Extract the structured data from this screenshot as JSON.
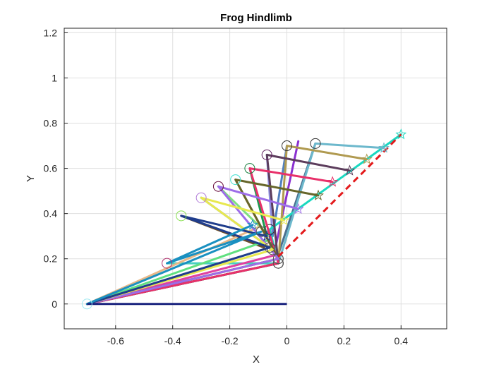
{
  "chart_data": {
    "type": "line",
    "title": "Frog Hindlimb",
    "xlabel": "X",
    "ylabel": "Y",
    "xlim": [
      -0.78,
      0.56
    ],
    "ylim": [
      -0.11,
      1.22
    ],
    "xticks": [
      -0.6,
      -0.4,
      -0.2,
      0,
      0.2,
      0.4
    ],
    "xticklabels": [
      "-0.6",
      "-0.4",
      "-0.2",
      "0",
      "0.2",
      "0.4"
    ],
    "yticks": [
      0,
      0.2,
      0.4,
      0.6,
      0.8,
      1,
      1.2
    ],
    "yticklabels": [
      "0",
      "0.2",
      "0.4",
      "0.6",
      "0.8",
      "1",
      "1.2"
    ],
    "grid": true,
    "base_link": {
      "x": [
        -0.7,
        0.0
      ],
      "y": [
        0.0,
        0.0
      ],
      "color": "#1a237e"
    },
    "base_marker": {
      "x": -0.7,
      "y": 0.0,
      "color": "#9ee8f0"
    },
    "target_path": {
      "x": [
        -0.03,
        0.4
      ],
      "y": [
        0.21,
        0.75
      ],
      "color": "#e31a1c",
      "style": "dashed"
    },
    "series": [
      {
        "x": [
          -0.7,
          -0.03,
          -0.06,
          0.4
        ],
        "y": [
          0.0,
          0.18,
          0.33,
          0.75
        ],
        "color": "#1ad8c0",
        "knee_color": "#555555",
        "hip_color": "#333333"
      },
      {
        "x": [
          -0.7,
          -0.03,
          0.1,
          0.34
        ],
        "y": [
          0.0,
          0.18,
          0.71,
          0.69
        ],
        "color": "#6cb8cc",
        "knee_color": "#555555",
        "hip_color": "#333333"
      },
      {
        "x": [
          -0.7,
          -0.03,
          0.0,
          0.28
        ],
        "y": [
          0.0,
          0.18,
          0.7,
          0.64
        ],
        "color": "#b09a50",
        "knee_color": "#555555",
        "hip_color": "#333333"
      },
      {
        "x": [
          -0.7,
          -0.03,
          -0.07,
          0.22
        ],
        "y": [
          0.0,
          0.18,
          0.66,
          0.59
        ],
        "color": "#5c3d5c",
        "knee_color": "#555555",
        "hip_color": "#5c1a5c"
      },
      {
        "x": [
          -0.7,
          -0.03,
          -0.13,
          0.16
        ],
        "y": [
          0.0,
          0.18,
          0.6,
          0.54
        ],
        "color": "#e8306a",
        "knee_color": "#555555",
        "hip_color": "#1a8040"
      },
      {
        "x": [
          -0.7,
          -0.03,
          -0.18,
          0.11
        ],
        "y": [
          0.0,
          0.2,
          0.55,
          0.48
        ],
        "color": "#66662a",
        "knee_color": "#555555",
        "hip_color": "#40e0d0"
      },
      {
        "x": [
          -0.7,
          -0.03,
          -0.24,
          0.04
        ],
        "y": [
          0.0,
          0.2,
          0.52,
          0.42
        ],
        "color": "#9d6de8",
        "knee_color": "#555555",
        "hip_color": "#6a1040"
      },
      {
        "x": [
          -0.7,
          -0.05,
          -0.3,
          -0.01
        ],
        "y": [
          0.0,
          0.24,
          0.47,
          0.37
        ],
        "color": "#e8e850",
        "knee_color": "#555555",
        "hip_color": "#b07bd8"
      },
      {
        "x": [
          -0.7,
          -0.06,
          -0.37,
          -0.07
        ],
        "y": [
          0.0,
          0.25,
          0.39,
          0.3
        ],
        "color": "#1f3d8c",
        "knee_color": "#555555",
        "hip_color": "#88e050"
      },
      {
        "x": [
          -0.7,
          -0.09,
          -0.42,
          -0.12
        ],
        "y": [
          0.0,
          0.32,
          0.18,
          0.35
        ],
        "color": "#1a90c0",
        "knee_color": "#555555",
        "hip_color": "#b0306e"
      }
    ],
    "extra_segments": [
      {
        "x": [
          -0.42,
          -0.03
        ],
        "y": [
          0.18,
          0.18
        ],
        "color": "#48d0c0"
      },
      {
        "x": [
          -0.37,
          -0.08
        ],
        "y": [
          0.39,
          0.25
        ],
        "color": "#6b4f2a"
      },
      {
        "x": [
          -0.3,
          -0.05
        ],
        "y": [
          0.47,
          0.24
        ],
        "color": "#3d6fd0"
      },
      {
        "x": [
          -0.24,
          -0.06
        ],
        "y": [
          0.52,
          0.3
        ],
        "color": "#80e080"
      },
      {
        "x": [
          -0.18,
          -0.04
        ],
        "y": [
          0.55,
          0.22
        ],
        "color": "#f0a070"
      },
      {
        "x": [
          -0.13,
          -0.07
        ],
        "y": [
          0.6,
          0.3
        ],
        "color": "#1a9c50"
      },
      {
        "x": [
          -0.07,
          -0.05
        ],
        "y": [
          0.66,
          0.3
        ],
        "color": "#9090e0"
      },
      {
        "x": [
          0.0,
          -0.05
        ],
        "y": [
          0.7,
          0.3
        ],
        "color": "#5080c0"
      },
      {
        "x": [
          0.04,
          -0.04
        ],
        "y": [
          0.72,
          0.25
        ],
        "color": "#8a30d0"
      },
      {
        "x": [
          0.1,
          -0.03
        ],
        "y": [
          0.71,
          0.22
        ],
        "color": "#4a7090"
      },
      {
        "x": [
          -0.7,
          -0.03
        ],
        "y": [
          0.0,
          0.22
        ],
        "color": "#e040a0"
      },
      {
        "x": [
          -0.7,
          -0.03
        ],
        "y": [
          0.0,
          0.2
        ],
        "color": "#808080"
      },
      {
        "x": [
          -0.7,
          -0.03
        ],
        "y": [
          0.0,
          0.18
        ],
        "color": "#d06040"
      },
      {
        "x": [
          -0.7,
          -0.07
        ],
        "y": [
          0.0,
          0.28
        ],
        "color": "#60e080"
      },
      {
        "x": [
          -0.7,
          -0.1
        ],
        "y": [
          0.0,
          0.34
        ],
        "color": "#e8b888"
      }
    ]
  }
}
